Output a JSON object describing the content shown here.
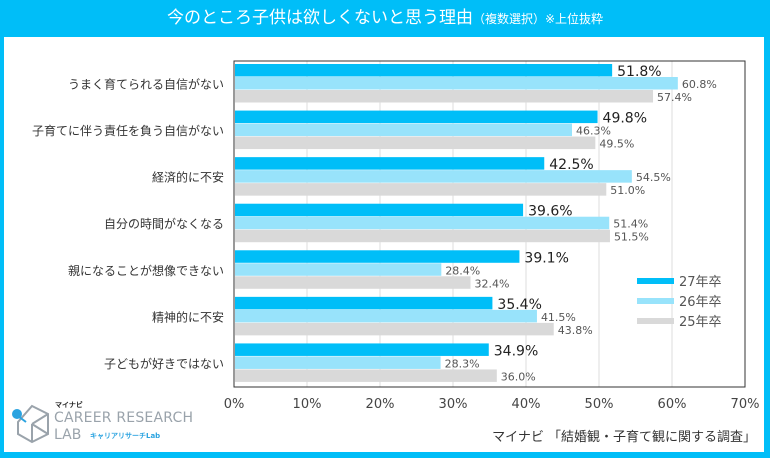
{
  "header": {
    "title": "今のところ子供は欲しくないと思う理由",
    "subtitle": "（複数選択）※上位抜粋"
  },
  "source": "マイナビ 「結婚観・子育て観に関する調査」",
  "logo": {
    "brand_small": "マイナビ",
    "brand_main": "CAREER RESEARCH",
    "brand_lab": "LAB",
    "brand_kana": "キャリアリサーチLab"
  },
  "colors": {
    "frame": "#00bef8",
    "s27": "#00bef8",
    "s26": "#98e3fb",
    "s25": "#d9d9d9",
    "grid": "#dddddd"
  },
  "chart_data": {
    "type": "bar",
    "orientation": "horizontal",
    "title": "今のところ子供は欲しくないと思う理由",
    "categories": [
      "うまく育てられる自信がない",
      "子育てに伴う責任を負う自信がない",
      "経済的に不安",
      "自分の時間がなくなる",
      "親になることが想像できない",
      "精神的に不安",
      "子どもが好きではない"
    ],
    "series": [
      {
        "name": "27年卒",
        "values": [
          51.8,
          49.8,
          42.5,
          39.6,
          39.1,
          35.4,
          34.9
        ]
      },
      {
        "name": "26年卒",
        "values": [
          60.8,
          46.3,
          54.5,
          51.4,
          28.4,
          41.5,
          28.3
        ]
      },
      {
        "name": "25年卒",
        "values": [
          57.4,
          49.5,
          51.0,
          51.5,
          32.4,
          43.8,
          36.0
        ]
      }
    ],
    "xlim": [
      0,
      70
    ],
    "xticks": [
      "0%",
      "10%",
      "20%",
      "30%",
      "40%",
      "50%",
      "60%",
      "70%"
    ],
    "value_suffix": "%",
    "grid": true,
    "legend": "right"
  }
}
